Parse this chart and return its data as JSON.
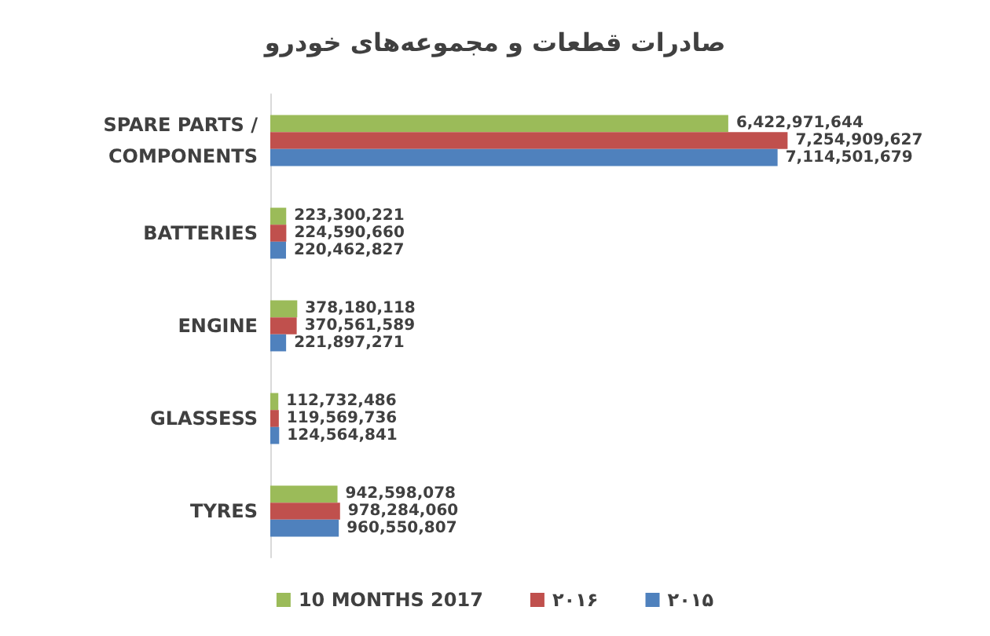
{
  "chart_data": {
    "type": "bar",
    "orientation": "horizontal",
    "title": "صادرات قطعات و مجموعه‌های خودرو",
    "categories": [
      "SPARE PARTS / COMPONENTS",
      "BATTERIES",
      "ENGINE",
      "GLASSESS",
      "TYRES"
    ],
    "series": [
      {
        "name": "10 MONTHS 2017",
        "color": "#9bbb59",
        "values": [
          6422971644,
          223300221,
          378180118,
          112732486,
          942598078
        ],
        "value_labels": [
          "6,422,971,644",
          "223,300,221",
          "378,180,118",
          "112,732,486",
          "942,598,078"
        ]
      },
      {
        "name": "۲۰۱۶",
        "color": "#c0504d",
        "values": [
          7254909627,
          224590660,
          370561589,
          119569736,
          978284060
        ],
        "value_labels": [
          "7,254,909,627",
          "224,590,660",
          "370,561,589",
          "119,569,736",
          "978,284,060"
        ]
      },
      {
        "name": "۲۰۱۵",
        "color": "#4f81bd",
        "values": [
          7114501679,
          220462827,
          221897271,
          124564841,
          960550807
        ],
        "value_labels": [
          "7,114,501,679",
          "220,462,827",
          "221,897,271",
          "124,564,841",
          "960,550,807"
        ]
      }
    ],
    "legend": "bottom",
    "tick_labels": "y"
  }
}
